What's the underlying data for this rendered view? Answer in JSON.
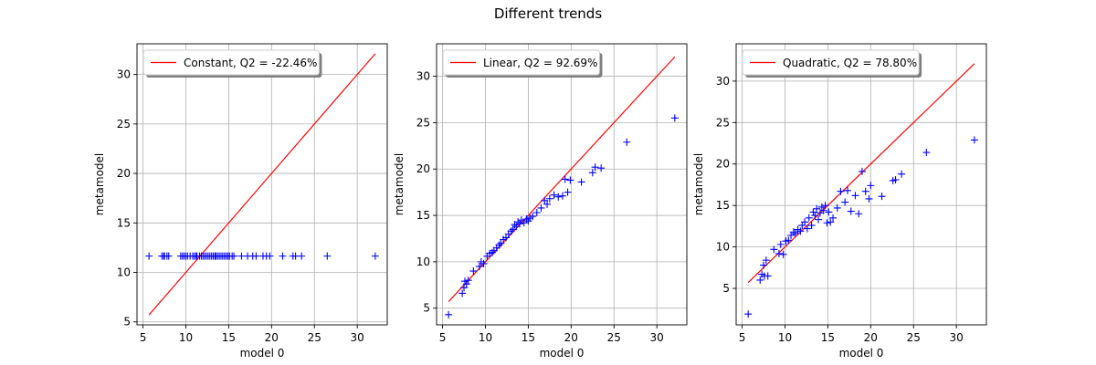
{
  "figure": {
    "title": "Different trends"
  },
  "chart_data": [
    {
      "type": "scatter",
      "xlabel": "model 0",
      "ylabel": "metamodel",
      "xlim": [
        4.3,
        33.5
      ],
      "ylim": [
        4.7,
        33.1
      ],
      "xticks": [
        5,
        10,
        15,
        20,
        25,
        30
      ],
      "yticks": [
        5,
        10,
        15,
        20,
        25,
        30
      ],
      "grid": true,
      "legend": {
        "label": "Constant, Q2 = -22.46%",
        "placement": "top-left",
        "color": "#ff0000"
      },
      "line": {
        "x": [
          5.7,
          32.1
        ],
        "y": [
          5.7,
          32.1
        ],
        "color": "#ff0000"
      },
      "marker": {
        "shape": "+",
        "color": "#0000ff"
      },
      "x": [
        5.7,
        7.2,
        7.4,
        7.5,
        7.8,
        8.0,
        9.4,
        9.6,
        9.8,
        10.0,
        10.2,
        10.5,
        10.8,
        11.0,
        11.2,
        11.3,
        11.6,
        11.8,
        12.0,
        12.2,
        12.4,
        12.6,
        12.8,
        13.0,
        13.2,
        13.4,
        13.5,
        13.7,
        13.9,
        14.1,
        14.3,
        14.5,
        14.7,
        14.9,
        15.1,
        15.4,
        15.6,
        16.5,
        17.2,
        17.8,
        18.2,
        19.0,
        19.4,
        19.8,
        21.3,
        22.5,
        22.8,
        23.5,
        26.5,
        32.1
      ],
      "y": [
        11.65,
        11.65,
        11.65,
        11.65,
        11.65,
        11.65,
        11.65,
        11.65,
        11.65,
        11.65,
        11.65,
        11.65,
        11.65,
        11.65,
        11.65,
        11.65,
        11.65,
        11.65,
        11.65,
        11.65,
        11.65,
        11.65,
        11.65,
        11.65,
        11.65,
        11.65,
        11.65,
        11.65,
        11.65,
        11.65,
        11.65,
        11.65,
        11.65,
        11.65,
        11.65,
        11.65,
        11.65,
        11.65,
        11.65,
        11.65,
        11.65,
        11.65,
        11.65,
        11.65,
        11.65,
        11.65,
        11.65,
        11.65,
        11.65,
        11.65
      ]
    },
    {
      "type": "scatter",
      "xlabel": "model 0",
      "ylabel": "metamodel",
      "xlim": [
        4.3,
        33.5
      ],
      "ylim": [
        3.2,
        33.5
      ],
      "xticks": [
        5,
        10,
        15,
        20,
        25,
        30
      ],
      "yticks": [
        5,
        10,
        15,
        20,
        25,
        30
      ],
      "grid": true,
      "legend": {
        "label": "Linear, Q2 = 92.69%",
        "placement": "top-left",
        "color": "#ff0000"
      },
      "line": {
        "x": [
          5.7,
          32.1
        ],
        "y": [
          5.7,
          32.1
        ],
        "color": "#ff0000"
      },
      "marker": {
        "shape": "+",
        "color": "#0000ff"
      },
      "x": [
        5.7,
        7.3,
        7.5,
        7.6,
        7.8,
        8.0,
        8.6,
        9.3,
        9.5,
        9.8,
        10.2,
        10.5,
        10.8,
        11.0,
        11.3,
        11.6,
        11.8,
        12.1,
        12.4,
        12.7,
        13.0,
        13.2,
        13.4,
        13.6,
        13.8,
        14.0,
        14.2,
        14.5,
        14.8,
        15.0,
        15.2,
        15.5,
        16.0,
        16.5,
        16.9,
        17.2,
        17.5,
        18.0,
        18.5,
        19.0,
        19.3,
        19.6,
        19.9,
        21.2,
        22.5,
        22.8,
        23.5,
        26.5,
        32.1
      ],
      "y": [
        4.3,
        6.6,
        7.2,
        7.9,
        7.6,
        8.0,
        9.0,
        9.5,
        10.0,
        9.8,
        10.6,
        10.9,
        11.0,
        11.2,
        11.5,
        11.8,
        12.0,
        12.4,
        12.6,
        13.0,
        13.3,
        13.5,
        14.0,
        13.8,
        14.3,
        14.1,
        14.5,
        14.2,
        14.6,
        14.4,
        14.7,
        14.9,
        15.3,
        15.8,
        16.6,
        16.2,
        16.8,
        17.2,
        17.0,
        17.1,
        18.9,
        17.5,
        18.8,
        18.6,
        19.6,
        20.2,
        20.1,
        22.9,
        25.5
      ]
    },
    {
      "type": "scatter",
      "xlabel": "model 0",
      "ylabel": "metamodel",
      "xlim": [
        4.3,
        33.5
      ],
      "ylim": [
        0.6,
        34.5
      ],
      "xticks": [
        5,
        10,
        15,
        20,
        25,
        30
      ],
      "yticks": [
        5,
        10,
        15,
        20,
        25,
        30
      ],
      "grid": true,
      "legend": {
        "label": "Quadratic, Q2 = 78.80%",
        "placement": "top-left",
        "color": "#ff0000"
      },
      "line": {
        "x": [
          5.7,
          32.1
        ],
        "y": [
          5.7,
          32.1
        ],
        "color": "#ff0000"
      },
      "marker": {
        "shape": "+",
        "color": "#0000ff"
      },
      "x": [
        5.7,
        7.1,
        7.3,
        7.5,
        7.6,
        7.8,
        8.0,
        8.7,
        9.3,
        9.5,
        9.8,
        10.1,
        10.4,
        10.7,
        11.0,
        11.2,
        11.5,
        11.8,
        12.0,
        12.3,
        12.6,
        12.8,
        13.1,
        13.3,
        13.5,
        13.7,
        13.9,
        14.1,
        14.3,
        14.5,
        14.7,
        14.9,
        15.1,
        15.3,
        15.6,
        16.1,
        16.5,
        17.0,
        17.3,
        17.7,
        18.2,
        18.6,
        19.0,
        19.4,
        19.8,
        20.0,
        21.3,
        22.6,
        22.9,
        23.6,
        26.5,
        32.1
      ],
      "y": [
        1.9,
        6.0,
        6.7,
        7.8,
        6.5,
        8.4,
        6.5,
        9.7,
        9.2,
        10.3,
        9.1,
        10.7,
        10.8,
        11.4,
        11.8,
        11.6,
        12.1,
        11.9,
        12.6,
        13.0,
        12.2,
        13.5,
        12.6,
        14.2,
        13.8,
        14.6,
        13.3,
        14.1,
        14.8,
        14.4,
        15.0,
        12.9,
        14.2,
        13.0,
        13.5,
        14.7,
        16.7,
        15.4,
        16.8,
        14.3,
        16.2,
        14.0,
        19.1,
        16.7,
        15.8,
        17.4,
        16.1,
        18.0,
        18.1,
        18.8,
        21.4,
        22.9
      ]
    }
  ]
}
